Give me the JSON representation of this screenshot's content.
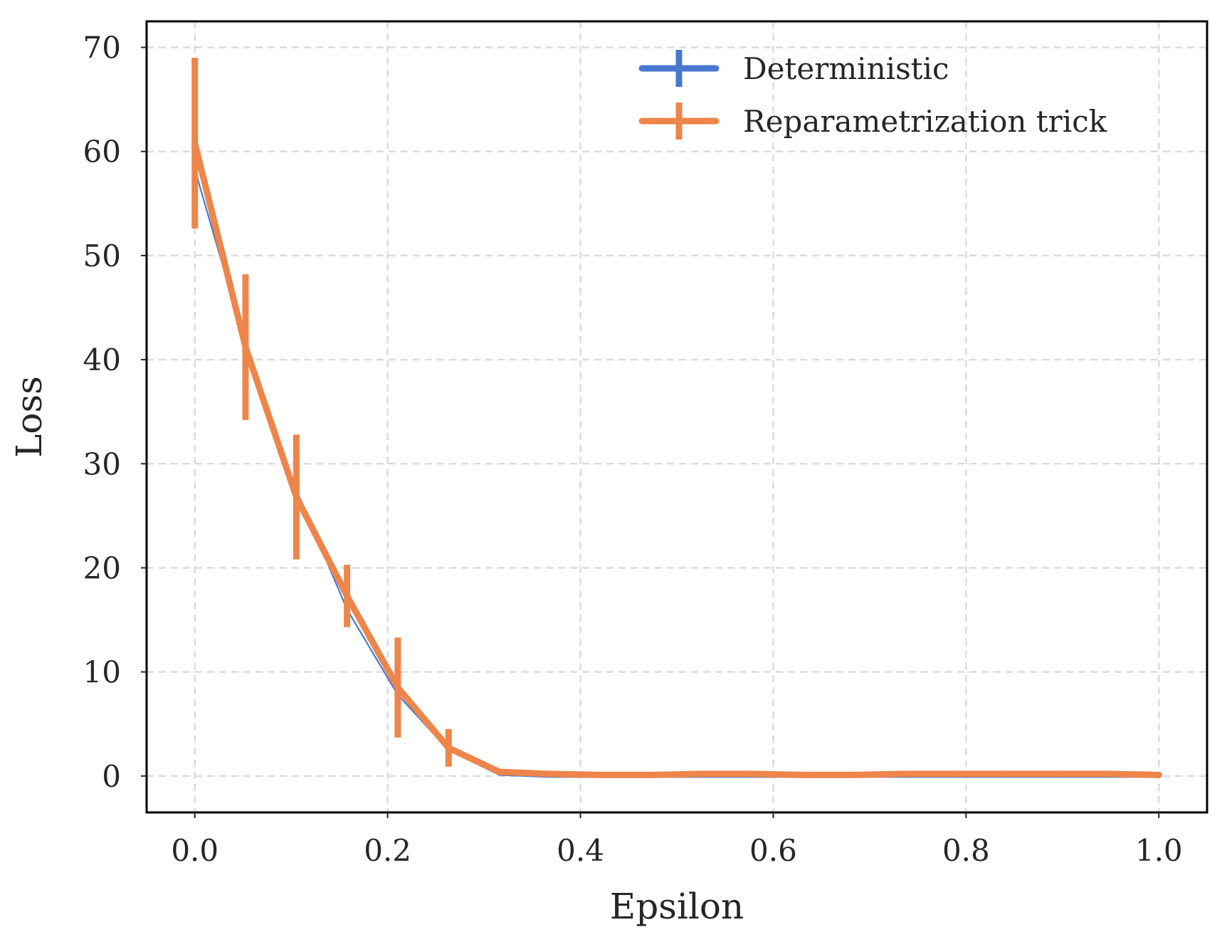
{
  "chart_data": {
    "type": "line",
    "title": "",
    "xlabel": "Epsilon",
    "ylabel": "Loss",
    "xlim": [
      -0.05,
      1.05
    ],
    "ylim": [
      -3.5,
      72.5
    ],
    "xticks": [
      0.0,
      0.2,
      0.4,
      0.6,
      0.8,
      1.0
    ],
    "xtick_labels": [
      "0.0",
      "0.2",
      "0.4",
      "0.6",
      "0.8",
      "1.0"
    ],
    "yticks": [
      0,
      10,
      20,
      30,
      40,
      50,
      60,
      70
    ],
    "ytick_labels": [
      "0",
      "10",
      "20",
      "30",
      "40",
      "50",
      "60",
      "70"
    ],
    "grid": true,
    "legend_position": "top-right",
    "series": [
      {
        "name": "Deterministic",
        "color": "#4878cf",
        "line_width": "thin",
        "x": [
          0.0,
          0.0526,
          0.1053,
          0.1579,
          0.2105,
          0.2632,
          0.3158,
          0.3684,
          0.4211,
          0.4737,
          0.5263,
          0.5789,
          0.6316,
          0.6842,
          0.7368,
          0.7895,
          0.8421,
          0.8947,
          0.9474,
          1.0
        ],
        "y": [
          58.3,
          41.5,
          27.5,
          16.0,
          7.8,
          2.5,
          0.1,
          -0.1,
          -0.1,
          -0.1,
          -0.1,
          -0.1,
          -0.1,
          -0.1,
          -0.1,
          -0.1,
          -0.1,
          -0.1,
          -0.1,
          -0.1
        ],
        "errors": []
      },
      {
        "name": "Reparametrization trick",
        "color": "#ee854a",
        "line_width": "thick",
        "x": [
          0.0,
          0.0526,
          0.1053,
          0.1579,
          0.2105,
          0.2632,
          0.3158,
          0.3684,
          0.4211,
          0.4737,
          0.5263,
          0.5789,
          0.6316,
          0.6842,
          0.7368,
          0.7895,
          0.8421,
          0.8947,
          0.9474,
          1.0
        ],
        "y": [
          60.8,
          41.2,
          26.8,
          17.3,
          8.5,
          2.7,
          0.4,
          0.2,
          0.1,
          0.1,
          0.2,
          0.2,
          0.1,
          0.1,
          0.2,
          0.2,
          0.2,
          0.2,
          0.2,
          0.1
        ],
        "errors": [
          8.2,
          7.0,
          6.0,
          3.0,
          4.8,
          1.8,
          0.2,
          0.1,
          0.1,
          0.1,
          0.1,
          0.1,
          0.1,
          0.1,
          0.1,
          0.1,
          0.1,
          0.1,
          0.1,
          0.1
        ]
      }
    ]
  }
}
